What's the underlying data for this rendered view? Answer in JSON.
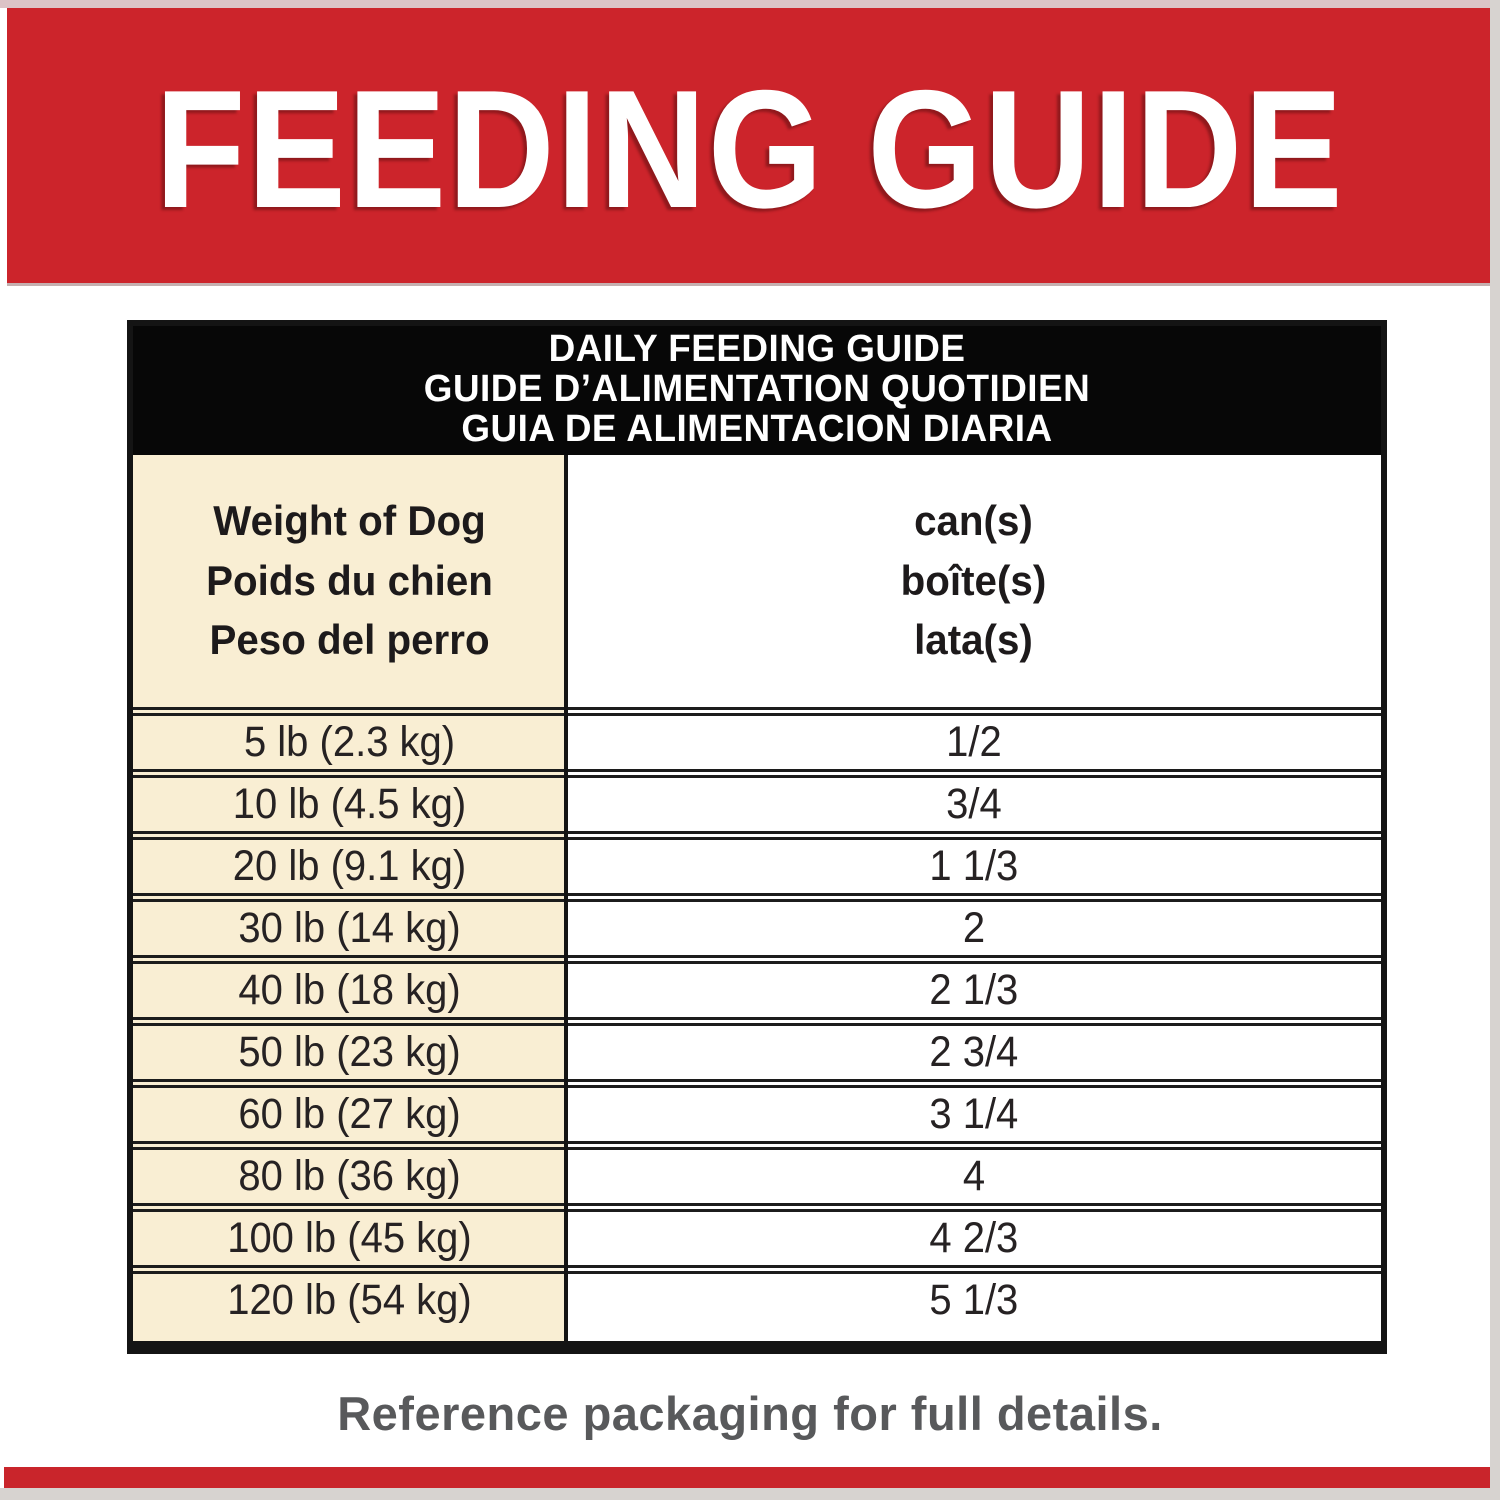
{
  "banner": {
    "title": "FEEDING GUIDE"
  },
  "table": {
    "title_lines": [
      "DAILY FEEDING GUIDE",
      "GUIDE D’ALIMENTATION QUOTIDIEN",
      "GUIA DE ALIMENTACION DIARIA"
    ],
    "columns": [
      {
        "header_lines": [
          "Weight of Dog",
          "Poids du chien",
          "Peso del perro"
        ]
      },
      {
        "header_lines": [
          "can(s)",
          "boîte(s)",
          "lata(s)"
        ]
      }
    ],
    "rows": [
      {
        "weight": "5 lb (2.3 kg)",
        "cans": "1/2"
      },
      {
        "weight": "10 lb (4.5 kg)",
        "cans": "3/4"
      },
      {
        "weight": "20 lb (9.1 kg)",
        "cans": "1 1/3"
      },
      {
        "weight": "30 lb (14 kg)",
        "cans": "2"
      },
      {
        "weight": "40 lb (18 kg)",
        "cans": "2 1/3"
      },
      {
        "weight": "50 lb (23 kg)",
        "cans": "2 3/4"
      },
      {
        "weight": "60 lb (27 kg)",
        "cans": "3 1/4"
      },
      {
        "weight": "80 lb (36 kg)",
        "cans": "4"
      },
      {
        "weight": "100 lb (45 kg)",
        "cans": "4 2/3"
      },
      {
        "weight": "120 lb (54 kg)",
        "cans": "5 1/3"
      }
    ]
  },
  "footer": {
    "note": "Reference packaging for full details."
  },
  "colors": {
    "brand_red": "#cc242b",
    "cream": "#f9eed3",
    "table_line_black": "#141414",
    "footer_gray": "#58595b",
    "edge_gray": "#d7d3d0",
    "top_strip_pink": "#dcc3c6"
  }
}
